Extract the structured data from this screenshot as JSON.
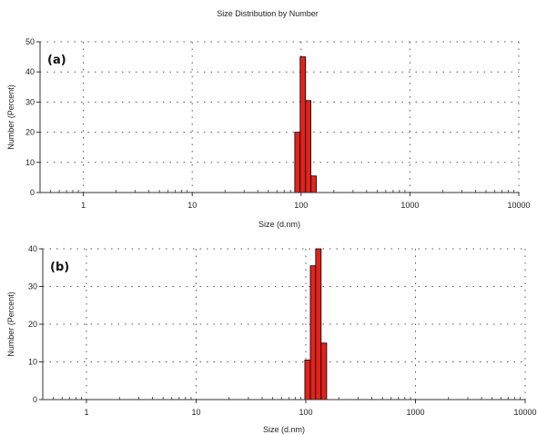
{
  "chart_data": [
    {
      "type": "bar",
      "title": "Size Distribution by Number",
      "panel_label": "(a)",
      "xlabel": "Size (d.nm)",
      "ylabel": "Number (Percent)",
      "x_scale": "log",
      "xlim": [
        0.4,
        10000
      ],
      "ylim": [
        0,
        50
      ],
      "x_ticks": [
        {
          "value": 1,
          "label": "1"
        },
        {
          "value": 10,
          "label": "10"
        },
        {
          "value": 100,
          "label": "100"
        },
        {
          "value": 1000,
          "label": "1000"
        },
        {
          "value": 10000,
          "label": "10000"
        }
      ],
      "y_ticks": [
        0,
        10,
        20,
        30,
        40,
        50
      ],
      "grid": true,
      "bar_color": "#e0231c",
      "bins": [
        {
          "from": 87.5,
          "to": 98.0,
          "value": 20
        },
        {
          "from": 98.0,
          "to": 110.0,
          "value": 45
        },
        {
          "from": 110.0,
          "to": 123.0,
          "value": 30.5
        },
        {
          "from": 123.0,
          "to": 138.0,
          "value": 5.5
        }
      ]
    },
    {
      "type": "bar",
      "title": "",
      "panel_label": "(b)",
      "xlabel": "Size (d.nm)",
      "ylabel": "Number (Percent)",
      "x_scale": "log",
      "xlim": [
        0.4,
        10000
      ],
      "ylim": [
        0,
        40
      ],
      "x_ticks": [
        {
          "value": 1,
          "label": "1"
        },
        {
          "value": 10,
          "label": "10"
        },
        {
          "value": 100,
          "label": "100"
        },
        {
          "value": 1000,
          "label": "1000"
        },
        {
          "value": 10000,
          "label": "10000"
        }
      ],
      "y_ticks": [
        0,
        10,
        20,
        30,
        40
      ],
      "grid": true,
      "bar_color": "#e0231c",
      "bins": [
        {
          "from": 98.0,
          "to": 110.0,
          "value": 10.5
        },
        {
          "from": 110.0,
          "to": 123.0,
          "value": 35.5
        },
        {
          "from": 123.0,
          "to": 138.0,
          "value": 40
        },
        {
          "from": 138.0,
          "to": 155.0,
          "value": 15
        }
      ]
    }
  ]
}
